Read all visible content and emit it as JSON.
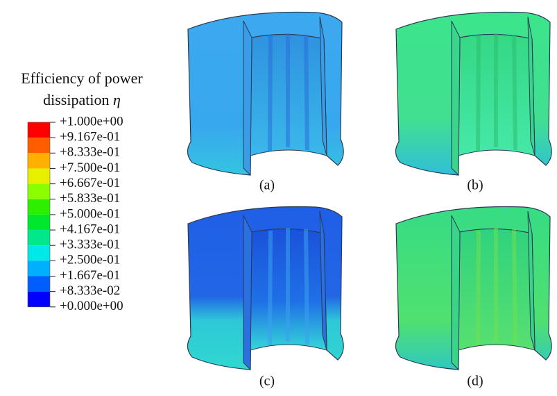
{
  "legend": {
    "title": [
      "Efficiency of power",
      "dissipation"
    ],
    "symbol": "η",
    "levels": [
      "+1.000e+00",
      "+9.167e-01",
      "+8.333e-01",
      "+7.500e-01",
      "+6.667e-01",
      "+5.833e-01",
      "+5.000e-01",
      "+4.167e-01",
      "+3.333e-01",
      "+2.500e-01",
      "+1.667e-01",
      "+8.333e-02",
      "+0.000e+00"
    ],
    "colors": [
      "#ff0000",
      "#ff5d00",
      "#ffb000",
      "#e8f000",
      "#8bff00",
      "#2eef00",
      "#00e82e",
      "#00e88b",
      "#00e8e8",
      "#00b0ff",
      "#005dff",
      "#0000ff"
    ]
  },
  "panels": [
    {
      "label": "(a)"
    },
    {
      "label": "(b)"
    },
    {
      "label": "(c)"
    },
    {
      "label": "(d)"
    }
  ]
}
